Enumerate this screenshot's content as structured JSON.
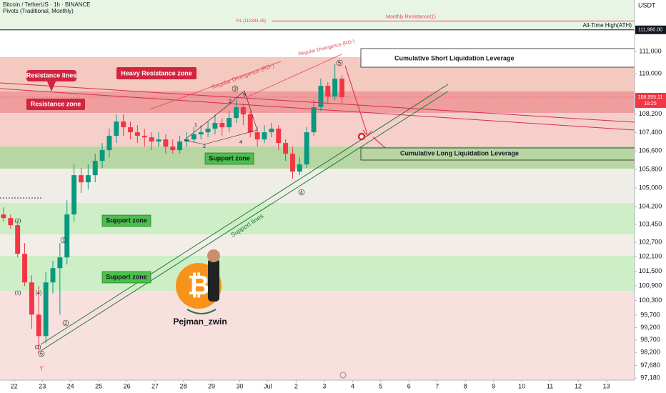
{
  "chart_data": {
    "type": "candlestick",
    "title": "Bitcoin / TetherUS · 1h · BINANCE",
    "subtitle": "Pivots (Traditional, Monthly)",
    "currency": "USDT",
    "log": true,
    "up_color": "#089981",
    "down_color": "#f23645",
    "xlim": [
      -0.5,
      22
    ],
    "xticks": [
      {
        "value": 0,
        "label": "22"
      },
      {
        "value": 1,
        "label": "23"
      },
      {
        "value": 2,
        "label": "24"
      },
      {
        "value": 3,
        "label": "25"
      },
      {
        "value": 4,
        "label": "26"
      },
      {
        "value": 5,
        "label": "27"
      },
      {
        "value": 6,
        "label": "28"
      },
      {
        "value": 7,
        "label": "29"
      },
      {
        "value": 8,
        "label": "30"
      },
      {
        "value": 9,
        "label": "Jul"
      },
      {
        "value": 10,
        "label": "2"
      },
      {
        "value": 11,
        "label": "3"
      },
      {
        "value": 12,
        "label": "4"
      },
      {
        "value": 13,
        "label": "5"
      },
      {
        "value": 14,
        "label": "6"
      },
      {
        "value": 15,
        "label": "7"
      },
      {
        "value": 16,
        "label": "8"
      },
      {
        "value": 17,
        "label": "9"
      },
      {
        "value": 18,
        "label": "10"
      },
      {
        "value": 19,
        "label": "11"
      },
      {
        "value": 20,
        "label": "12"
      },
      {
        "value": 21,
        "label": "13"
      }
    ],
    "ylim": [
      97100,
      113350
    ],
    "yticks": [
      {
        "value": 111000,
        "label": "111,000"
      },
      {
        "value": 110000,
        "label": "110,000"
      },
      {
        "value": 108200,
        "label": "108,200"
      },
      {
        "value": 107400,
        "label": "107,400"
      },
      {
        "value": 106600,
        "label": "106,600"
      },
      {
        "value": 105800,
        "label": "105,800"
      },
      {
        "value": 105000,
        "label": "105,000"
      },
      {
        "value": 104200,
        "label": "104,200"
      },
      {
        "value": 103450,
        "label": "103,450"
      },
      {
        "value": 102700,
        "label": "102,700"
      },
      {
        "value": 102100,
        "label": "102,100"
      },
      {
        "value": 101500,
        "label": "101,500"
      },
      {
        "value": 100900,
        "label": "100,900"
      },
      {
        "value": 100300,
        "label": "100,300"
      },
      {
        "value": 99700,
        "label": "99,700"
      },
      {
        "value": 99200,
        "label": "99,200"
      },
      {
        "value": 98700,
        "label": "98,700"
      },
      {
        "value": 98200,
        "label": "98,200"
      },
      {
        "value": 97680,
        "label": "97,680"
      },
      {
        "value": 97180,
        "label": "97,180"
      }
    ],
    "x": [
      -0.375,
      -0.125,
      0.125,
      0.375,
      0.625,
      0.875,
      1.125,
      1.375,
      1.625,
      1.875,
      2.125,
      2.375,
      2.625,
      2.875,
      3.125,
      3.375,
      3.625,
      3.875,
      4.125,
      4.375,
      4.625,
      4.875,
      5.125,
      5.375,
      5.625,
      5.875,
      6.125,
      6.375,
      6.625,
      6.875,
      7.125,
      7.375,
      7.625,
      7.875,
      8.125,
      8.375,
      8.625,
      8.875,
      9.125,
      9.375,
      9.625,
      9.875,
      10.125,
      10.375,
      10.625,
      10.875,
      11.125,
      11.375,
      11.625
    ],
    "open": [
      103874,
      103723,
      103421,
      102223,
      101040,
      99725,
      98858,
      101040,
      101630,
      102074,
      103874,
      105549,
      105242,
      105549,
      106166,
      106630,
      107253,
      107879,
      107628,
      107409,
      107253,
      107190,
      107004,
      107096,
      106785,
      106630,
      107004,
      107096,
      107316,
      107409,
      107566,
      107817,
      107628,
      108035,
      108509,
      108193,
      107409,
      107096,
      107409,
      107566,
      106941,
      106475,
      105704,
      106012,
      107409,
      108509,
      109460,
      108983,
      109780
    ],
    "high": [
      104176,
      103874,
      103572,
      102671,
      101334,
      100892,
      101482,
      101927,
      102671,
      104479,
      106012,
      105857,
      106012,
      106475,
      106941,
      107566,
      108193,
      108193,
      107879,
      107722,
      107566,
      107409,
      107409,
      107316,
      107096,
      107253,
      107409,
      107628,
      107722,
      107879,
      108193,
      108035,
      108350,
      108824,
      108667,
      108350,
      107628,
      107722,
      107817,
      107722,
      107096,
      106785,
      106320,
      107628,
      108824,
      109780,
      109620,
      110420,
      109940
    ],
    "low": [
      103572,
      103270,
      102074,
      100892,
      99146,
      98141,
      98570,
      100599,
      99725,
      101778,
      103572,
      104784,
      104936,
      105242,
      105857,
      106320,
      106941,
      107253,
      107096,
      106941,
      106785,
      106630,
      106785,
      106475,
      106475,
      106475,
      106785,
      106941,
      107096,
      107190,
      107316,
      107253,
      107409,
      107817,
      107722,
      107190,
      106785,
      106941,
      107190,
      106630,
      106166,
      105397,
      105549,
      105857,
      107253,
      108350,
      108667,
      108824,
      108667
    ],
    "close": [
      103723,
      103421,
      102223,
      101040,
      99725,
      98858,
      101040,
      101630,
      102074,
      103874,
      105549,
      105242,
      105549,
      106166,
      106630,
      107253,
      107879,
      107628,
      107409,
      107253,
      107190,
      107004,
      107096,
      106785,
      106630,
      107004,
      107096,
      107316,
      107409,
      107566,
      107817,
      107628,
      108035,
      108509,
      108193,
      107409,
      107096,
      107409,
      107566,
      106941,
      106475,
      105704,
      106012,
      107409,
      108509,
      109460,
      108983,
      109780,
      108955
    ],
    "last_price": {
      "value": 108955.11,
      "label": "108,955.11"
    },
    "countdown": "18:25",
    "ath": {
      "value": 111980,
      "label": "111,980.00",
      "name": "All-Time High(ATH)"
    },
    "r1": {
      "value": 112384.45,
      "label": "R1 (112384.45)",
      "name": "Monthly Resistance(1)"
    },
    "annotations": {
      "heavy_resistance": "Heavy Resistance zone",
      "resistance_lines": "Resistance lines",
      "resistance_zone": "Resistance zone",
      "support_zone_1": "Support zone",
      "support_zone_2": "Support zone",
      "support_zone_3": "Support zone",
      "support_lines": "Support lines",
      "divergence_1": "Regular Divergence (RD-)",
      "divergence_2": "Regular Divergence (RD-)",
      "short_liq": "Cumulative Short Liquidation Leverage",
      "long_liq": "Cumulative Long Liquidation Leverage",
      "author": "Pejman_zwin"
    },
    "wave_labels": [
      "1",
      "2",
      "3",
      "2",
      "4",
      "5",
      "5",
      "4",
      "1",
      "2",
      "5",
      "(1)",
      "(2)",
      "(3)",
      "(4)",
      "Y"
    ]
  }
}
